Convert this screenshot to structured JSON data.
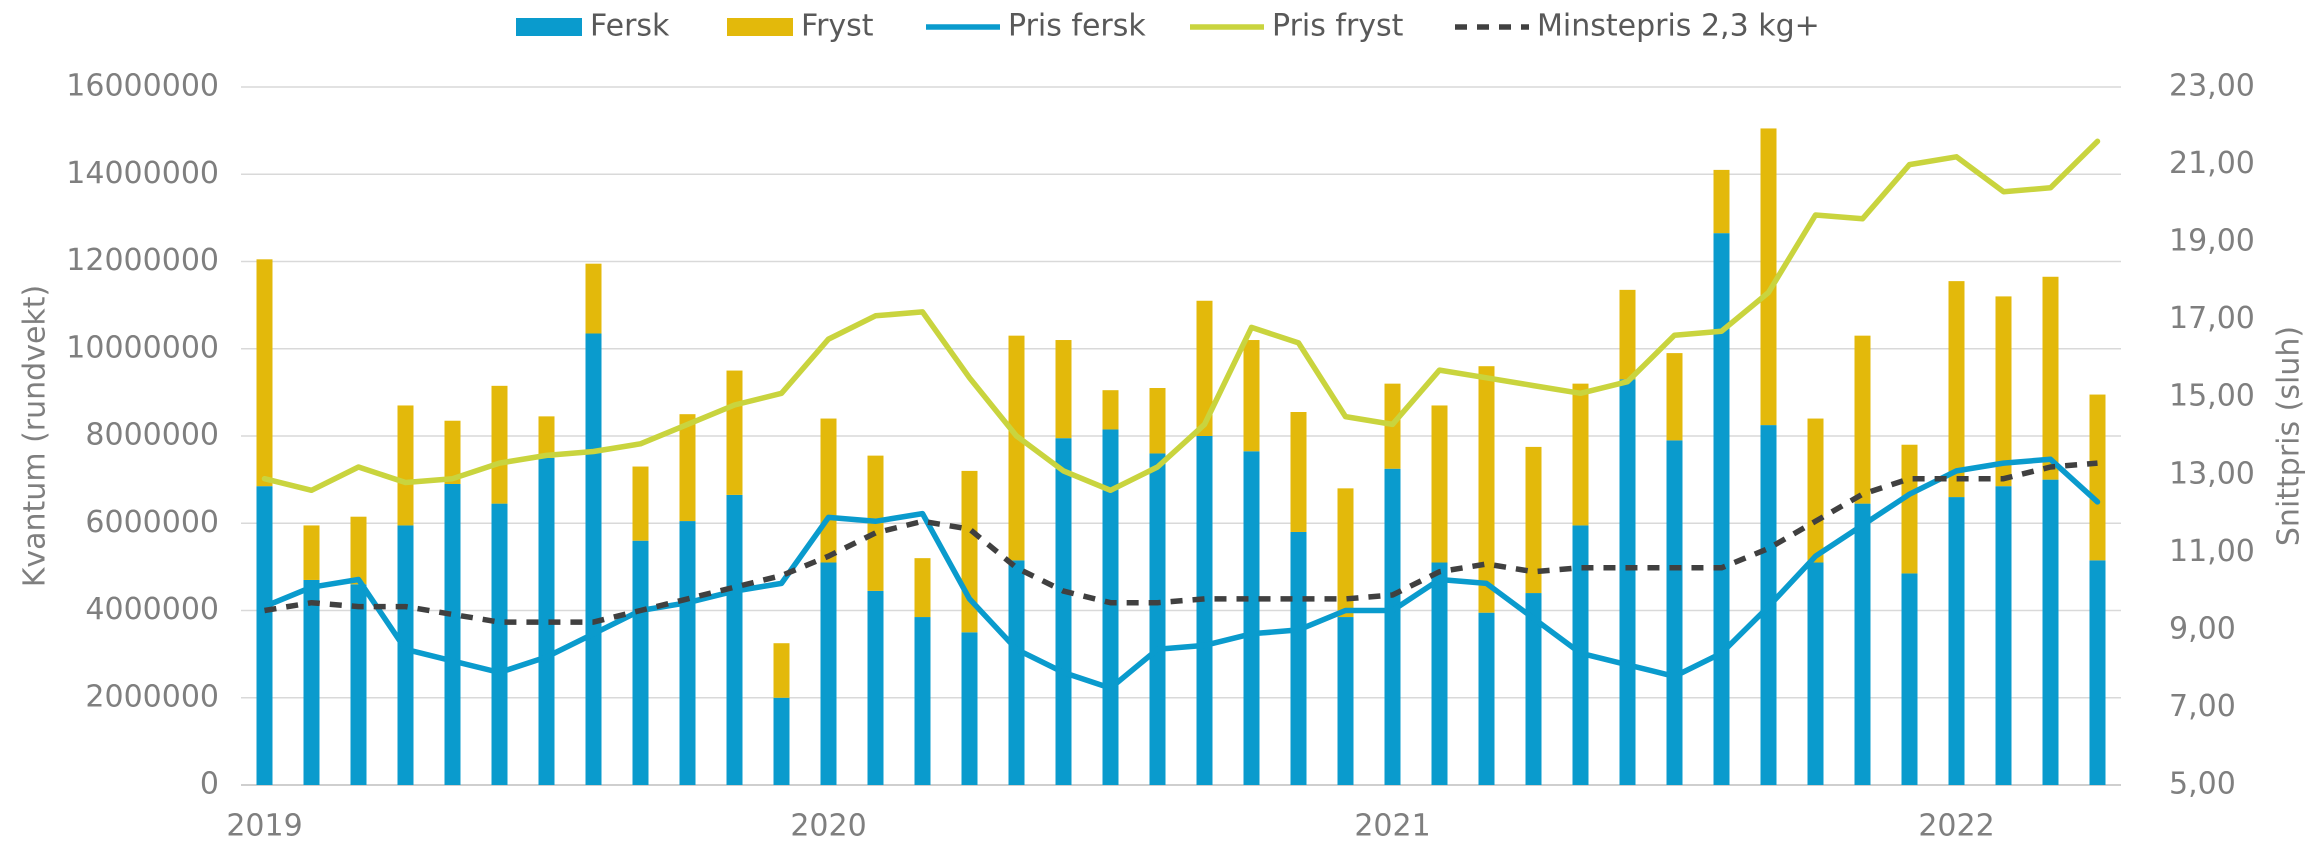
{
  "chart_data": {
    "type": "bar",
    "y_label": "Kvantum (rundvekt)",
    "y2_label": "Snittpris (sluh)",
    "categories": [
      "2019",
      null,
      null,
      null,
      null,
      null,
      null,
      null,
      null,
      null,
      null,
      null,
      "2020",
      null,
      null,
      null,
      null,
      null,
      null,
      null,
      null,
      null,
      null,
      null,
      "2021",
      null,
      null,
      null,
      null,
      null,
      null,
      null,
      null,
      null,
      null,
      null,
      "2022",
      null,
      null,
      null
    ],
    "ylim": [
      0,
      16000000
    ],
    "yticks": [
      0,
      2000000,
      4000000,
      6000000,
      8000000,
      10000000,
      12000000,
      14000000,
      16000000
    ],
    "y2lim": [
      5,
      23
    ],
    "y2ticks": [
      {
        "value": 5,
        "label": "5,00"
      },
      {
        "value": 7,
        "label": "7,00"
      },
      {
        "value": 9,
        "label": "9,00"
      },
      {
        "value": 11,
        "label": "11,00"
      },
      {
        "value": 13,
        "label": "13,00"
      },
      {
        "value": 15,
        "label": "15,00"
      },
      {
        "value": 17,
        "label": "17,00"
      },
      {
        "value": 19,
        "label": "19,00"
      },
      {
        "value": 21,
        "label": "21,00"
      },
      {
        "value": 23,
        "label": "23,00"
      }
    ],
    "grid": true,
    "legend": "top",
    "series": [
      {
        "name": "Fersk",
        "type": "bar",
        "color": "#0a9bcd",
        "values": [
          6850000,
          4700000,
          4600000,
          5950000,
          6900000,
          6450000,
          7500000,
          10350000,
          5600000,
          6050000,
          6650000,
          2000000,
          5100000,
          4450000,
          3850000,
          3500000,
          5150000,
          7950000,
          8150000,
          7600000,
          8000000,
          7650000,
          5800000,
          3850000,
          7250000,
          5100000,
          3950000,
          4400000,
          5950000,
          9300000,
          7900000,
          12650000,
          8250000,
          5100000,
          6450000,
          4850000,
          6600000,
          6850000,
          7000000,
          5150000
        ]
      },
      {
        "name": "Fryst",
        "type": "bar",
        "color": "#e3b90b",
        "values": [
          5200000,
          1250000,
          1550000,
          2750000,
          1450000,
          2700000,
          950000,
          1600000,
          1700000,
          2450000,
          2850000,
          1250000,
          3300000,
          3100000,
          1350000,
          3700000,
          5150000,
          2250000,
          900000,
          1500000,
          3100000,
          2550000,
          2750000,
          2950000,
          1950000,
          3600000,
          5650000,
          3350000,
          3250000,
          2050000,
          2000000,
          1450000,
          6800000,
          3300000,
          3850000,
          2950000,
          4950000,
          4350000,
          4650000,
          3800000
        ]
      },
      {
        "name": "Pris fersk",
        "type": "line",
        "axis": "y2",
        "color": "#0a9bcd",
        "values": [
          9.6,
          10.1,
          10.3,
          8.5,
          8.2,
          7.9,
          8.3,
          8.9,
          9.5,
          9.7,
          10.0,
          10.2,
          11.9,
          11.8,
          12.0,
          9.8,
          8.5,
          7.9,
          7.5,
          8.5,
          8.6,
          8.9,
          9.0,
          9.5,
          9.5,
          10.3,
          10.2,
          9.3,
          8.4,
          8.1,
          7.8,
          8.4,
          9.6,
          10.9,
          11.7,
          12.5,
          13.1,
          13.3,
          13.4,
          12.3
        ]
      },
      {
        "name": "Pris fryst",
        "type": "line",
        "axis": "y2",
        "color": "#c9d43e",
        "values": [
          12.9,
          12.6,
          13.2,
          12.8,
          12.9,
          13.3,
          13.5,
          13.6,
          13.8,
          14.3,
          14.8,
          15.1,
          16.5,
          17.1,
          17.2,
          15.5,
          14.0,
          13.1,
          12.6,
          13.2,
          14.3,
          16.8,
          16.4,
          14.5,
          14.3,
          15.7,
          15.5,
          15.3,
          15.1,
          15.4,
          16.6,
          16.7,
          17.7,
          19.7,
          19.6,
          21.0,
          21.2,
          20.3,
          20.4,
          21.6
        ]
      },
      {
        "name": "Minstepris 2,3 kg+",
        "type": "line",
        "axis": "y2",
        "color": "#404040",
        "dashed": true,
        "values": [
          9.5,
          9.7,
          9.6,
          9.6,
          9.4,
          9.2,
          9.2,
          9.2,
          9.5,
          9.8,
          10.1,
          10.4,
          10.9,
          11.5,
          11.8,
          11.6,
          10.6,
          10.0,
          9.7,
          9.7,
          9.8,
          9.8,
          9.8,
          9.8,
          9.9,
          10.5,
          10.7,
          10.5,
          10.6,
          10.6,
          10.6,
          10.6,
          11.1,
          11.8,
          12.5,
          12.9,
          12.9,
          12.9,
          13.2,
          13.3
        ]
      }
    ]
  }
}
